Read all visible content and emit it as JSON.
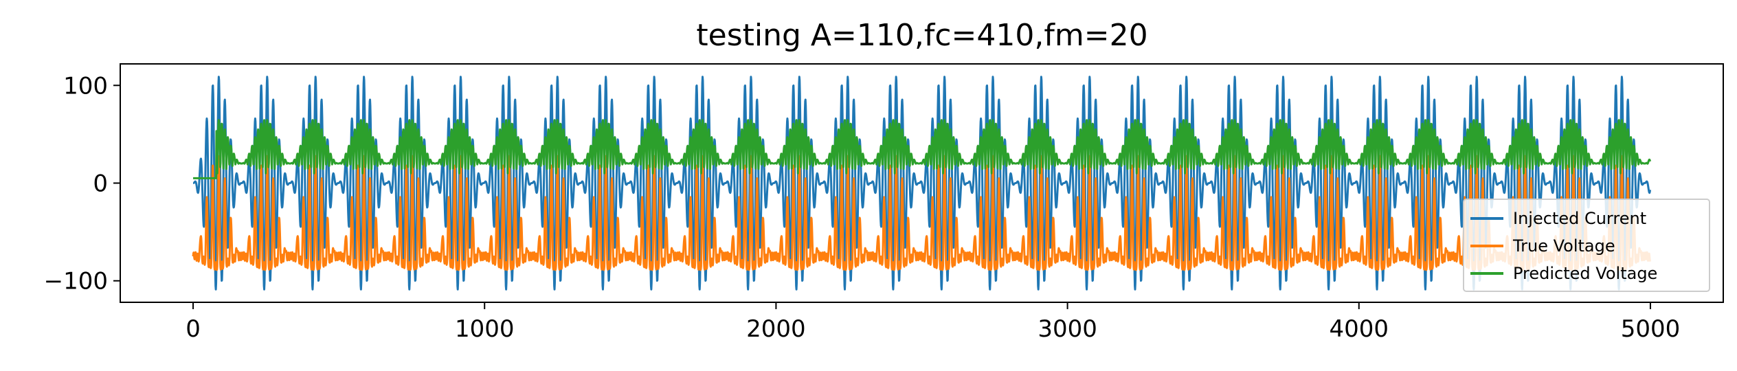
{
  "chart_data": {
    "type": "line",
    "title": "testing A=110,fc=410,fm=20",
    "xlabel": "",
    "ylabel": "",
    "xlim": [
      -250,
      5250
    ],
    "ylim": [
      -122,
      122
    ],
    "xticks": [
      0,
      1000,
      2000,
      3000,
      4000,
      5000
    ],
    "yticks": [
      100,
      0,
      -100
    ],
    "xtick_labels": [
      "0",
      "1000",
      "2000",
      "3000",
      "4000",
      "5000"
    ],
    "ytick_labels": [
      "100",
      "0",
      "−100"
    ],
    "grid": false,
    "legend_placement": "lower right",
    "modulation_period": 166,
    "carrier_cycles_per_period": 8,
    "samples": 5000,
    "series": [
      {
        "name": "Injected Current",
        "color": "#1f77b4",
        "description": "Modulated oscillation, peaks about 110 and troughs about -108 near modulation maxima, small near 0 at modulation minima",
        "amplitude": 110,
        "offset": 0
      },
      {
        "name": "True Voltage",
        "color": "#ff7f0e",
        "baseline": -75,
        "peak": 33,
        "min": -102
      },
      {
        "name": "Predicted Voltage",
        "color": "#2ca02c",
        "baseline": 20,
        "peak": 65,
        "min": 5
      }
    ]
  }
}
